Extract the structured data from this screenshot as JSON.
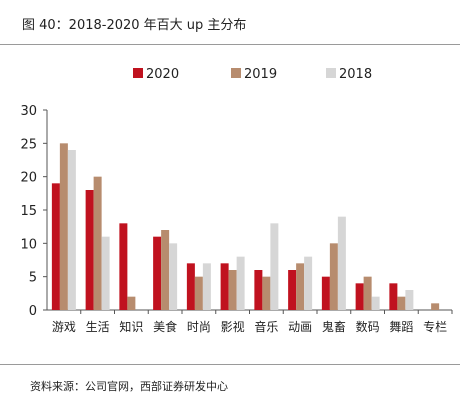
{
  "figure": {
    "title": "图 40：2018-2020 年百大 up 主分布",
    "source": "资料来源：公司官网，西部证券研发中心"
  },
  "chart_data": {
    "type": "bar",
    "title": "",
    "xlabel": "",
    "ylabel": "",
    "ylim": [
      0,
      30
    ],
    "yticks": [
      0,
      5,
      10,
      15,
      20,
      25,
      30
    ],
    "grid": false,
    "legend_position": "top-center",
    "categories": [
      "游戏",
      "生活",
      "知识",
      "美食",
      "时尚",
      "影视",
      "音乐",
      "动画",
      "鬼畜",
      "数码",
      "舞蹈",
      "专栏"
    ],
    "series": [
      {
        "name": "2020",
        "color": "#c0121f",
        "values": [
          19,
          18,
          13,
          11,
          7,
          7,
          6,
          6,
          5,
          4,
          4,
          0
        ]
      },
      {
        "name": "2019",
        "color": "#b78c6e",
        "values": [
          25,
          20,
          2,
          12,
          5,
          6,
          5,
          7,
          10,
          5,
          2,
          1
        ]
      },
      {
        "name": "2018",
        "color": "#d6d6d6",
        "values": [
          24,
          11,
          0,
          10,
          7,
          8,
          13,
          8,
          14,
          2,
          3,
          0
        ]
      }
    ]
  }
}
